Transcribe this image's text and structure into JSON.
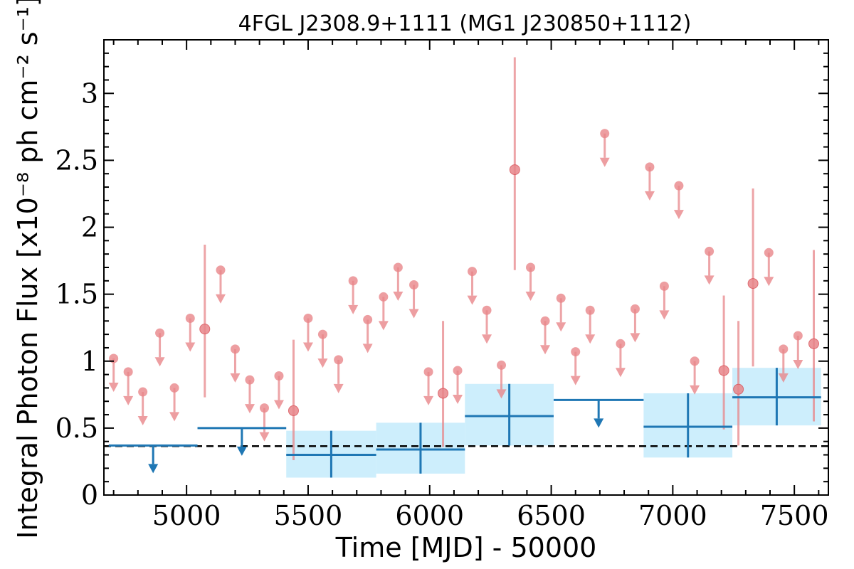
{
  "chart_data": {
    "type": "scatter",
    "title": "4FGL J2308.9+1111 (MG1 J230850+1112)",
    "xlabel": "Time [MJD] - 50000",
    "ylabel": "Integral Photon Flux [x10⁻⁸ ph cm⁻² s⁻¹]",
    "xlim": [
      4660,
      7640
    ],
    "ylim": [
      0,
      3.4
    ],
    "x_ticks": [
      {
        "value": 5000,
        "label": "5000"
      },
      {
        "value": 5500,
        "label": "5500"
      },
      {
        "value": 6000,
        "label": "6000"
      },
      {
        "value": 6500,
        "label": "6500"
      },
      {
        "value": 7000,
        "label": "7000"
      },
      {
        "value": 7500,
        "label": "7500"
      }
    ],
    "y_ticks": [
      {
        "value": 0,
        "label": "0"
      },
      {
        "value": 0.5,
        "label": "0.5"
      },
      {
        "value": 1,
        "label": "1"
      },
      {
        "value": 1.5,
        "label": "1.5"
      },
      {
        "value": 2,
        "label": "2"
      },
      {
        "value": 2.5,
        "label": "2.5"
      },
      {
        "value": 3,
        "label": "3"
      }
    ],
    "grid": false,
    "reference_line": {
      "y": 0.365,
      "style": "dashed",
      "color": "#000000"
    },
    "colors": {
      "short_bins": "#e8868a",
      "long_bins": "#1f77b4",
      "error_box": "#cdeefc"
    },
    "short_bins_detections": [
      {
        "x": 5075,
        "y": 1.24,
        "ylo": 0.73,
        "yhi": 1.87
      },
      {
        "x": 5440,
        "y": 0.63,
        "ylo": 0.26,
        "yhi": 1.16
      },
      {
        "x": 6055,
        "y": 0.76,
        "ylo": 0.36,
        "yhi": 1.3
      },
      {
        "x": 6350,
        "y": 2.43,
        "ylo": 1.68,
        "yhi": 3.27
      },
      {
        "x": 7210,
        "y": 0.93,
        "ylo": 0.49,
        "yhi": 1.49
      },
      {
        "x": 7270,
        "y": 0.79,
        "ylo": 0.37,
        "yhi": 1.3
      },
      {
        "x": 7330,
        "y": 1.58,
        "ylo": 0.96,
        "yhi": 2.29
      },
      {
        "x": 7580,
        "y": 1.13,
        "ylo": 0.55,
        "yhi": 1.83
      }
    ],
    "short_bins_upper_limits": [
      {
        "x": 4700,
        "y": 1.02
      },
      {
        "x": 4760,
        "y": 0.92
      },
      {
        "x": 4820,
        "y": 0.77
      },
      {
        "x": 4890,
        "y": 1.21
      },
      {
        "x": 4950,
        "y": 0.8
      },
      {
        "x": 5015,
        "y": 1.32
      },
      {
        "x": 5140,
        "y": 1.68
      },
      {
        "x": 5200,
        "y": 1.09
      },
      {
        "x": 5260,
        "y": 0.86
      },
      {
        "x": 5320,
        "y": 0.65
      },
      {
        "x": 5380,
        "y": 0.89
      },
      {
        "x": 5500,
        "y": 1.32
      },
      {
        "x": 5560,
        "y": 1.2
      },
      {
        "x": 5625,
        "y": 1.01
      },
      {
        "x": 5685,
        "y": 1.6
      },
      {
        "x": 5745,
        "y": 1.31
      },
      {
        "x": 5810,
        "y": 1.48
      },
      {
        "x": 5870,
        "y": 1.7
      },
      {
        "x": 5935,
        "y": 1.57
      },
      {
        "x": 5995,
        "y": 0.92
      },
      {
        "x": 6115,
        "y": 0.93
      },
      {
        "x": 6175,
        "y": 1.67
      },
      {
        "x": 6235,
        "y": 1.38
      },
      {
        "x": 6295,
        "y": 0.97
      },
      {
        "x": 6415,
        "y": 1.7
      },
      {
        "x": 6475,
        "y": 1.3
      },
      {
        "x": 6540,
        "y": 1.47
      },
      {
        "x": 6600,
        "y": 1.07
      },
      {
        "x": 6660,
        "y": 1.38
      },
      {
        "x": 6720,
        "y": 2.7
      },
      {
        "x": 6785,
        "y": 1.13
      },
      {
        "x": 6845,
        "y": 1.39
      },
      {
        "x": 6905,
        "y": 2.45
      },
      {
        "x": 6965,
        "y": 1.56
      },
      {
        "x": 7025,
        "y": 2.31
      },
      {
        "x": 7090,
        "y": 1.0
      },
      {
        "x": 7150,
        "y": 1.82
      },
      {
        "x": 7395,
        "y": 1.81
      },
      {
        "x": 7455,
        "y": 1.09
      },
      {
        "x": 7515,
        "y": 1.19
      }
    ],
    "long_bins_detections": [
      {
        "x0": 5410,
        "x1": 5780,
        "y": 0.3,
        "ylo": 0.13,
        "yhi": 0.48
      },
      {
        "x0": 5780,
        "x1": 6145,
        "y": 0.34,
        "ylo": 0.16,
        "yhi": 0.54
      },
      {
        "x0": 6145,
        "x1": 6510,
        "y": 0.59,
        "ylo": 0.37,
        "yhi": 0.83
      },
      {
        "x0": 6880,
        "x1": 7245,
        "y": 0.51,
        "ylo": 0.28,
        "yhi": 0.76
      },
      {
        "x0": 7245,
        "x1": 7610,
        "y": 0.73,
        "ylo": 0.52,
        "yhi": 0.95
      }
    ],
    "long_bins_upper_limits": [
      {
        "x0": 4680,
        "x1": 5045,
        "y": 0.37
      },
      {
        "x0": 5045,
        "x1": 5410,
        "y": 0.5
      },
      {
        "x0": 6510,
        "x1": 6880,
        "y": 0.71
      }
    ]
  }
}
